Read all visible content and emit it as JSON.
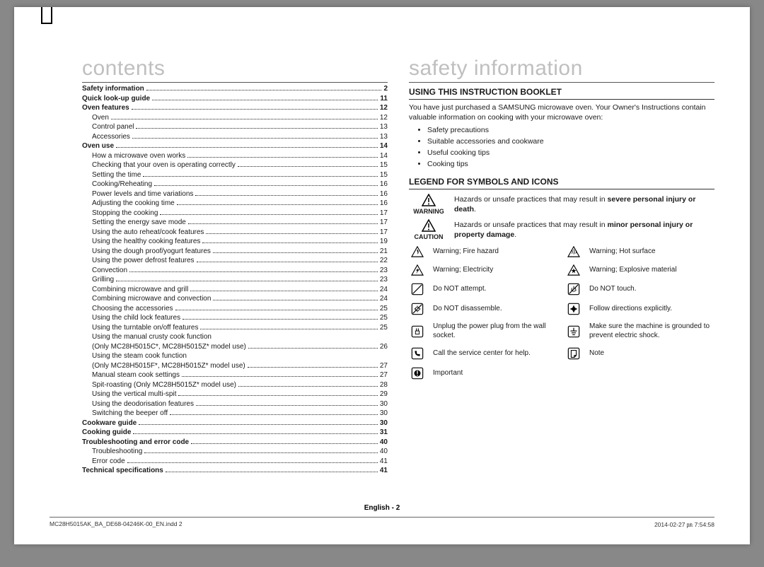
{
  "left": {
    "title": "contents",
    "toc": [
      {
        "label": "Safety information",
        "page": "2",
        "bold": true,
        "sub": false
      },
      {
        "label": "Quick look-up guide",
        "page": "11",
        "bold": true,
        "sub": false
      },
      {
        "label": "Oven features",
        "page": "12",
        "bold": true,
        "sub": false
      },
      {
        "label": "Oven",
        "page": "12",
        "bold": false,
        "sub": true
      },
      {
        "label": "Control panel",
        "page": "13",
        "bold": false,
        "sub": true
      },
      {
        "label": "Accessories",
        "page": "13",
        "bold": false,
        "sub": true
      },
      {
        "label": "Oven use",
        "page": "14",
        "bold": true,
        "sub": false
      },
      {
        "label": "How a microwave oven works",
        "page": "14",
        "bold": false,
        "sub": true
      },
      {
        "label": "Checking that your oven is operating correctly",
        "page": "15",
        "bold": false,
        "sub": true
      },
      {
        "label": "Setting the time",
        "page": "15",
        "bold": false,
        "sub": true
      },
      {
        "label": "Cooking/Reheating",
        "page": "16",
        "bold": false,
        "sub": true
      },
      {
        "label": "Power levels and time variations",
        "page": "16",
        "bold": false,
        "sub": true
      },
      {
        "label": "Adjusting the cooking time",
        "page": "16",
        "bold": false,
        "sub": true
      },
      {
        "label": "Stopping the cooking",
        "page": "17",
        "bold": false,
        "sub": true
      },
      {
        "label": "Setting the energy save mode",
        "page": "17",
        "bold": false,
        "sub": true
      },
      {
        "label": "Using the auto reheat/cook features",
        "page": "17",
        "bold": false,
        "sub": true
      },
      {
        "label": "Using the healthy cooking features",
        "page": "19",
        "bold": false,
        "sub": true
      },
      {
        "label": "Using the dough proof/yogurt features",
        "page": "21",
        "bold": false,
        "sub": true
      },
      {
        "label": "Using the power defrost features",
        "page": "22",
        "bold": false,
        "sub": true
      },
      {
        "label": "Convection",
        "page": "23",
        "bold": false,
        "sub": true
      },
      {
        "label": "Grilling",
        "page": "23",
        "bold": false,
        "sub": true
      },
      {
        "label": "Combining microwave and grill",
        "page": "24",
        "bold": false,
        "sub": true
      },
      {
        "label": "Combining microwave and convection",
        "page": "24",
        "bold": false,
        "sub": true
      },
      {
        "label": "Choosing the accessories",
        "page": "25",
        "bold": false,
        "sub": true
      },
      {
        "label": "Using the child lock features",
        "page": "25",
        "bold": false,
        "sub": true
      },
      {
        "label": "Using the turntable on/off features",
        "page": "25",
        "bold": false,
        "sub": true
      },
      {
        "label": "Using the manual crusty cook function",
        "page": "",
        "bold": false,
        "sub": true,
        "nodots": true
      },
      {
        "label": "(Only MC28H5015C*, MC28H5015Z* model use)",
        "page": "26",
        "bold": false,
        "sub": true
      },
      {
        "label": "Using the steam cook function",
        "page": "",
        "bold": false,
        "sub": true,
        "nodots": true
      },
      {
        "label": "(Only MC28H5015F*, MC28H5015Z* model use)",
        "page": "27",
        "bold": false,
        "sub": true
      },
      {
        "label": "Manual steam cook settings",
        "page": "27",
        "bold": false,
        "sub": true
      },
      {
        "label": "Spit-roasting (Only MC28H5015Z* model use)",
        "page": "28",
        "bold": false,
        "sub": true
      },
      {
        "label": "Using the vertical multi-spit",
        "page": "29",
        "bold": false,
        "sub": true
      },
      {
        "label": "Using the deodorisation features",
        "page": "30",
        "bold": false,
        "sub": true
      },
      {
        "label": "Switching the beeper off",
        "page": "30",
        "bold": false,
        "sub": true
      },
      {
        "label": "Cookware guide",
        "page": "30",
        "bold": true,
        "sub": false
      },
      {
        "label": "Cooking guide",
        "page": "31",
        "bold": true,
        "sub": false
      },
      {
        "label": "Troubleshooting and error code",
        "page": "40",
        "bold": true,
        "sub": false
      },
      {
        "label": "Troubleshooting",
        "page": "40",
        "bold": false,
        "sub": true
      },
      {
        "label": "Error code",
        "page": "41",
        "bold": false,
        "sub": true
      },
      {
        "label": "Technical specifications",
        "page": "41",
        "bold": true,
        "sub": false
      }
    ]
  },
  "right": {
    "title": "safety information",
    "heading1": "USING THIS INSTRUCTION BOOKLET",
    "para1": "You have just purchased a SAMSUNG microwave oven. Your Owner's Instructions contain valuable information on cooking with your microwave oven:",
    "bullets": [
      "Safety precautions",
      "Suitable accessories and cookware",
      "Useful cooking tips",
      "Cooking tips"
    ],
    "heading2": "LEGEND FOR SYMBOLS AND ICONS",
    "warning_label": "WARNING",
    "warning_text_pre": "Hazards or unsafe practices that may result in ",
    "warning_text_bold": "severe personal injury or death",
    "caution_label": "CAUTION",
    "caution_text_pre": "Hazards or unsafe practices that may result in ",
    "caution_text_bold": "minor personal injury or property damage",
    "icons": [
      {
        "name": "fire-icon",
        "text": "Warning; Fire hazard",
        "name2": "hot-surface-icon",
        "text2": "Warning; Hot surface"
      },
      {
        "name": "electricity-icon",
        "text": "Warning; Electricity",
        "name2": "explosive-icon",
        "text2": "Warning; Explosive material"
      },
      {
        "name": "no-attempt-icon",
        "text": "Do NOT attempt.",
        "name2": "no-touch-icon",
        "text2": "Do NOT touch."
      },
      {
        "name": "no-disassemble-icon",
        "text": "Do NOT disassemble.",
        "name2": "follow-directions-icon",
        "text2": "Follow directions explicitly."
      },
      {
        "name": "unplug-icon",
        "text": "Unplug the power plug from the wall socket.",
        "name2": "ground-icon",
        "text2": "Make sure the machine is grounded to prevent electric shock."
      },
      {
        "name": "call-service-icon",
        "text": "Call the service center for help.",
        "name2": "note-icon",
        "text2": "Note"
      },
      {
        "name": "important-icon",
        "text": "Important",
        "name2": "",
        "text2": ""
      }
    ]
  },
  "footer": {
    "center": "English - 2",
    "left": "MC28H5015AK_BA_DE68-04246K-00_EN.indd   2",
    "right": "2014-02-27   ㏘ 7:54:58"
  },
  "colors": {
    "title_gray": "#bfbfbf",
    "text": "#1a1a1a",
    "page_bg": "#ffffff"
  }
}
